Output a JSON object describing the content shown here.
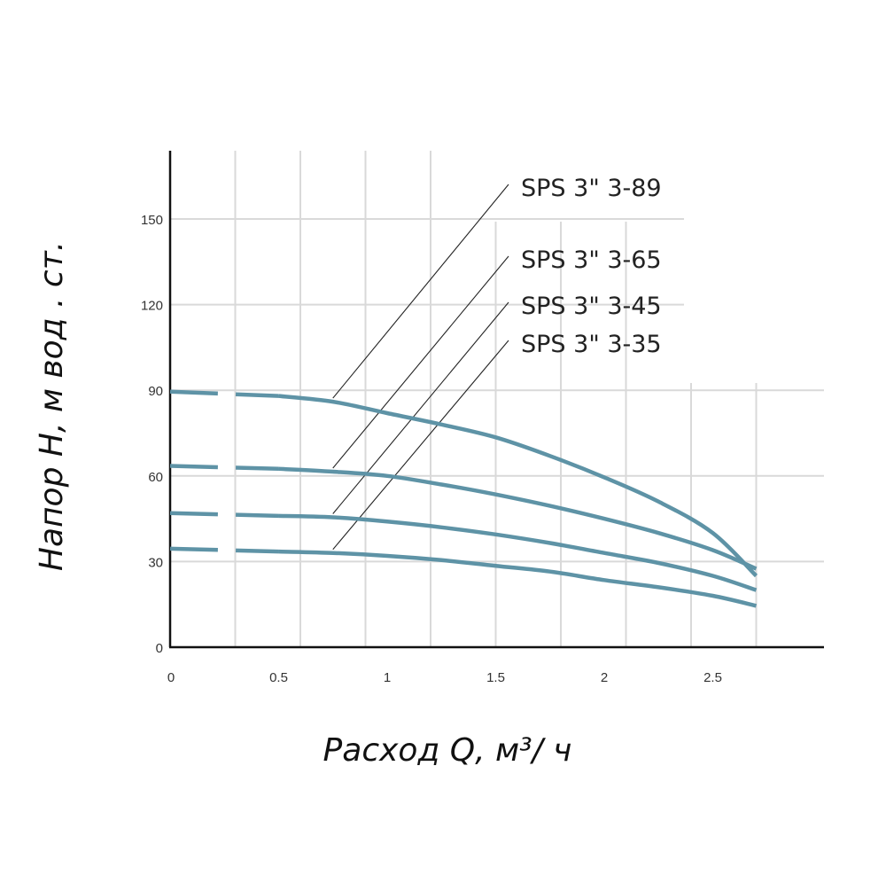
{
  "chart_data": {
    "type": "line",
    "title": "",
    "xlabel": "Расход   Q,  м³/ ч",
    "ylabel": "Напор  Н,  м вод . ст.",
    "xlim": [
      0,
      3.0
    ],
    "ylim": [
      0,
      175
    ],
    "x_ticks": [
      0,
      0.5,
      1,
      1.5,
      2,
      2.5
    ],
    "x_tick_labels": [
      "0",
      "0.5",
      "1",
      "1.5",
      "2",
      "2.5"
    ],
    "y_ticks": [
      0,
      30,
      60,
      90,
      120,
      150
    ],
    "y_tick_labels": [
      "0",
      "30",
      "60",
      "90",
      "120",
      "150"
    ],
    "grid": true,
    "dashed_until_x": 0.5,
    "series": [
      {
        "name": "SPS 3\" 3-89",
        "x": [
          0,
          0.5,
          0.75,
          1.0,
          1.25,
          1.5,
          1.75,
          2.0,
          2.25,
          2.5,
          2.7
        ],
        "y": [
          89.5,
          88,
          86,
          82,
          78,
          73.5,
          67,
          59.5,
          51,
          40,
          25
        ]
      },
      {
        "name": "SPS 3\" 3-65",
        "x": [
          0,
          0.5,
          0.75,
          1.0,
          1.25,
          1.5,
          1.75,
          2.0,
          2.25,
          2.5,
          2.7
        ],
        "y": [
          63.5,
          62.5,
          61.5,
          60,
          57,
          53.5,
          49.5,
          45,
          40,
          34,
          27.5
        ]
      },
      {
        "name": "SPS 3\" 3-45",
        "x": [
          0,
          0.5,
          0.75,
          1.0,
          1.25,
          1.5,
          1.75,
          2.0,
          2.25,
          2.5,
          2.7
        ],
        "y": [
          47,
          46,
          45.5,
          44,
          42,
          39.5,
          36.5,
          33,
          29.5,
          25,
          20
        ]
      },
      {
        "name": "SPS 3\" 3-35",
        "x": [
          0,
          0.5,
          0.75,
          1.0,
          1.25,
          1.5,
          1.75,
          2.0,
          2.25,
          2.5,
          2.7
        ],
        "y": [
          34.5,
          33.5,
          33,
          32,
          30.5,
          28.5,
          26.5,
          23.5,
          21,
          18,
          14.5
        ]
      }
    ],
    "line_color": "#5e93a6",
    "grid_color": "#d9d9d9",
    "axis_color": "#111111"
  }
}
